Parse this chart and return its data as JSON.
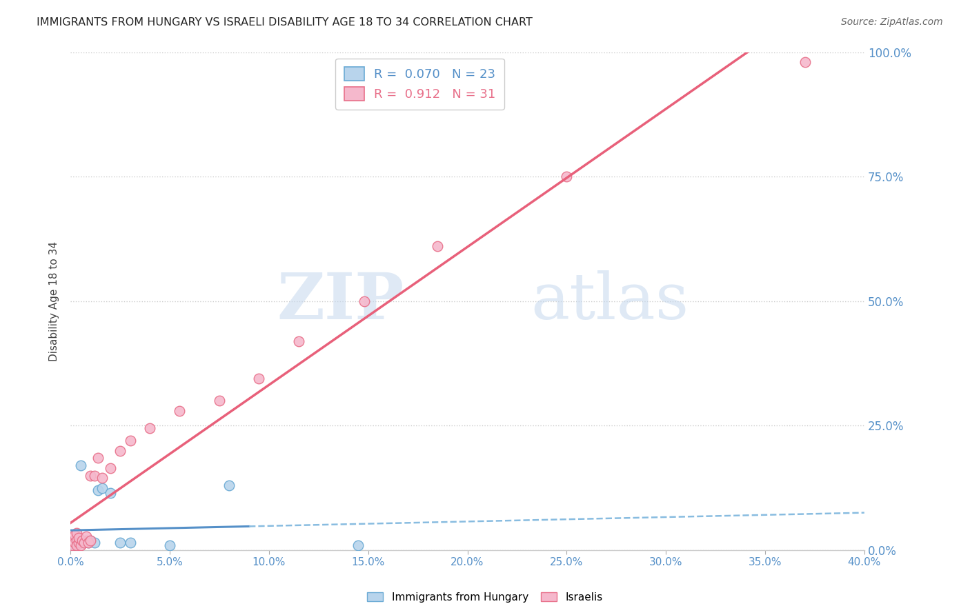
{
  "title": "IMMIGRANTS FROM HUNGARY VS ISRAELI DISABILITY AGE 18 TO 34 CORRELATION CHART",
  "source": "Source: ZipAtlas.com",
  "legend_label1": "Immigrants from Hungary",
  "legend_label2": "Israelis",
  "ylabel": "Disability Age 18 to 34",
  "r1": 0.07,
  "n1": 23,
  "r2": 0.912,
  "n2": 31,
  "color1_face": "#b8d4ec",
  "color1_edge": "#6aaad4",
  "color2_face": "#f5b8cc",
  "color2_edge": "#e8708a",
  "line_color1_solid": "#5590c8",
  "line_color1_dash": "#88bce0",
  "line_color2": "#e8607a",
  "xlim": [
    0.0,
    0.4
  ],
  "ylim": [
    0.0,
    1.0
  ],
  "xticks": [
    0.0,
    0.05,
    0.1,
    0.15,
    0.2,
    0.25,
    0.3,
    0.35,
    0.4
  ],
  "yticks": [
    0.0,
    0.25,
    0.5,
    0.75,
    1.0
  ],
  "watermark_zip": "ZIP",
  "watermark_atlas": "atlas",
  "blue_x": [
    0.001,
    0.002,
    0.002,
    0.003,
    0.003,
    0.004,
    0.004,
    0.005,
    0.005,
    0.006,
    0.007,
    0.008,
    0.009,
    0.01,
    0.012,
    0.014,
    0.016,
    0.02,
    0.025,
    0.03,
    0.05,
    0.08,
    0.145
  ],
  "blue_y": [
    0.02,
    0.01,
    0.02,
    0.015,
    0.025,
    0.015,
    0.025,
    0.02,
    0.17,
    0.015,
    0.015,
    0.02,
    0.015,
    0.02,
    0.015,
    0.12,
    0.125,
    0.115,
    0.015,
    0.015,
    0.01,
    0.13,
    0.01
  ],
  "pink_x": [
    0.001,
    0.001,
    0.002,
    0.002,
    0.003,
    0.003,
    0.003,
    0.004,
    0.004,
    0.005,
    0.006,
    0.007,
    0.008,
    0.009,
    0.01,
    0.01,
    0.012,
    0.014,
    0.016,
    0.02,
    0.025,
    0.03,
    0.04,
    0.055,
    0.075,
    0.095,
    0.115,
    0.148,
    0.185,
    0.25,
    0.37
  ],
  "pink_y": [
    0.01,
    0.02,
    0.015,
    0.03,
    0.02,
    0.035,
    0.01,
    0.015,
    0.025,
    0.01,
    0.02,
    0.015,
    0.028,
    0.015,
    0.02,
    0.15,
    0.15,
    0.185,
    0.145,
    0.165,
    0.2,
    0.22,
    0.245,
    0.28,
    0.3,
    0.345,
    0.42,
    0.5,
    0.61,
    0.75,
    0.98
  ],
  "tick_color": "#5590c8",
  "grid_color": "#cccccc",
  "title_color": "#222222",
  "source_color": "#666666",
  "marker_size": 110,
  "marker_lw": 1.0
}
